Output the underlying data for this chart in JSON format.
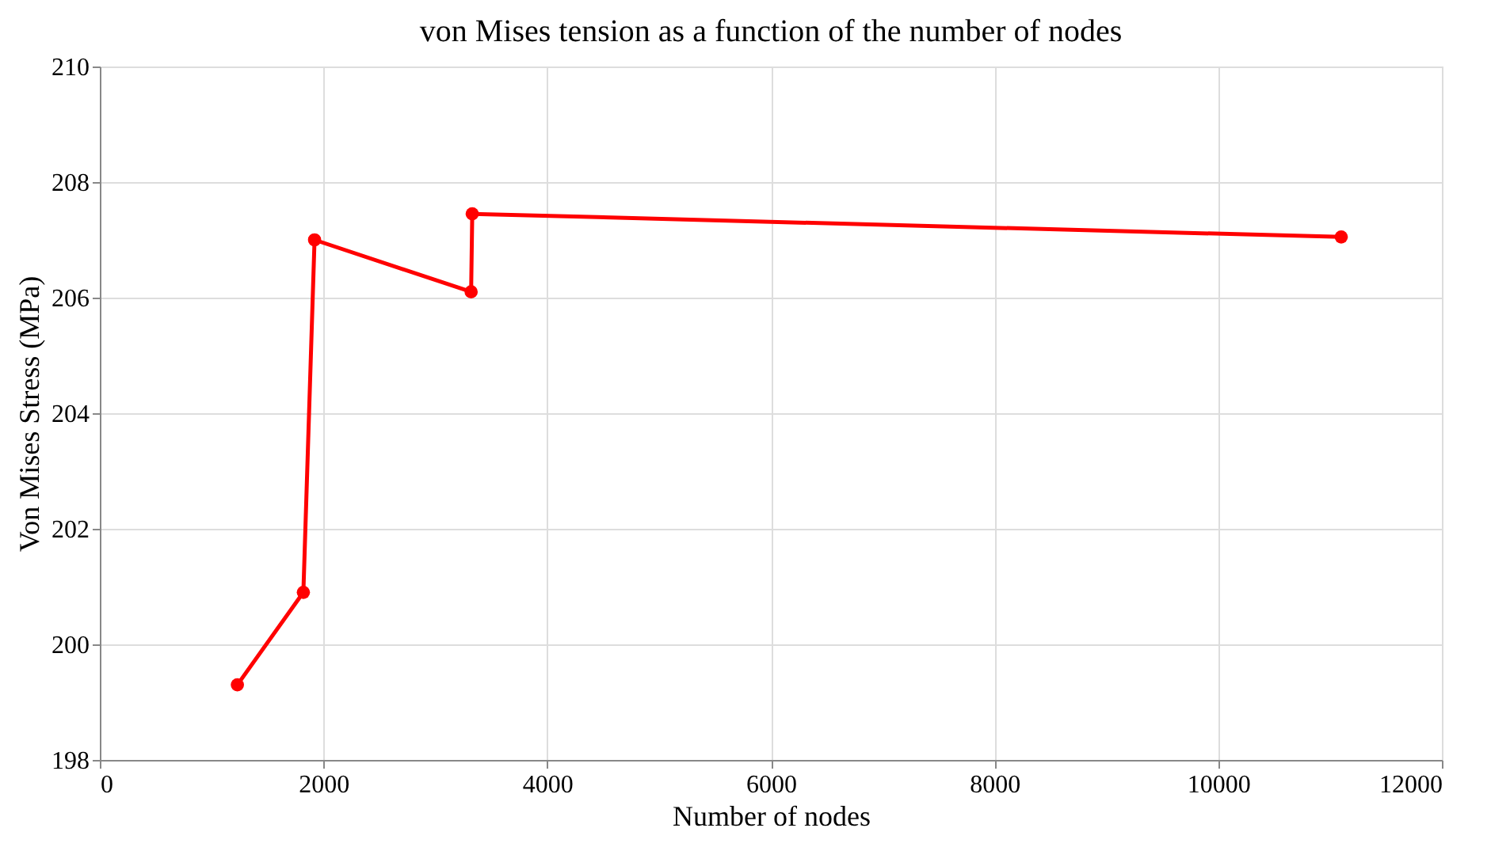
{
  "chart_data": {
    "type": "line",
    "title": "von Mises tension as a function of the number of nodes",
    "xlabel": "Number of nodes",
    "ylabel": "Von Mises Stress (MPa)",
    "x": [
      1230,
      1820,
      1920,
      3320,
      3330,
      11100
    ],
    "series": [
      {
        "color": "#ff0000",
        "values": [
          199.3,
          200.9,
          207.0,
          206.1,
          207.45,
          207.05
        ]
      }
    ],
    "xlim": [
      0,
      12000
    ],
    "xticks": [
      0,
      2000,
      4000,
      6000,
      8000,
      10000,
      12000
    ],
    "ylim": [
      198,
      210
    ],
    "yticks": [
      198,
      200,
      202,
      204,
      206,
      208,
      210
    ],
    "grid": true,
    "marker": "circle",
    "line_style": "solid"
  }
}
